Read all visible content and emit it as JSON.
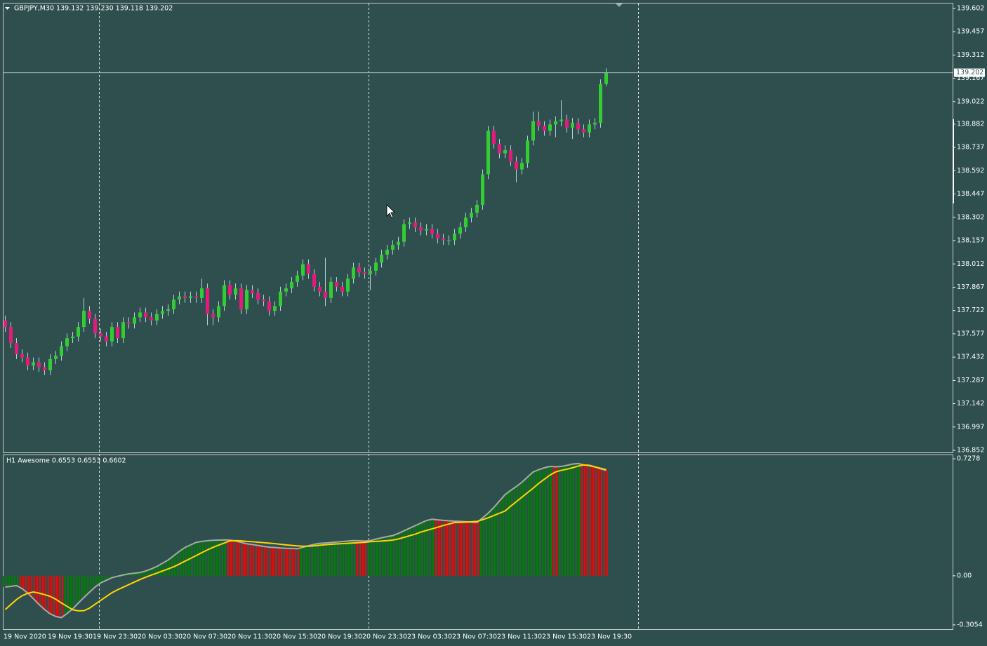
{
  "chart_data": [
    {
      "type": "candlestick",
      "title": "GBPJPY,M30  139.132 139.230 139.118 139.202",
      "categories": [
        "19 Nov 2020",
        null,
        null,
        null,
        null,
        null,
        null,
        "19 Nov 19:30",
        null,
        null,
        null,
        null,
        null,
        null,
        null,
        "19 Nov 23:30",
        null,
        null,
        null,
        null,
        null,
        null,
        null,
        "20 Nov 03:30",
        null,
        null,
        null,
        null,
        null,
        null,
        null,
        "20 Nov 07:30",
        null,
        null,
        null,
        null,
        null,
        null,
        null,
        "20 Nov 11:30",
        null,
        null,
        null,
        null,
        null,
        null,
        null,
        "20 Nov 15:30",
        null,
        null,
        null,
        null,
        null,
        null,
        null,
        "20 Nov 19:30",
        null,
        null,
        null,
        null,
        null,
        null,
        null,
        "20 Nov 23:30",
        null,
        null,
        null,
        null,
        null,
        null,
        null,
        "23 Nov 03:30",
        null,
        null,
        null,
        null,
        null,
        null,
        null,
        "23 Nov 07:30",
        null,
        null,
        null,
        null,
        null,
        null,
        null,
        "23 Nov 11:30",
        null,
        null,
        null,
        null,
        null,
        null,
        null,
        "23 Nov 15:30",
        null,
        null,
        null,
        null,
        null,
        null,
        null,
        "23 Nov 19:30",
        null,
        null,
        null,
        null
      ],
      "open": [
        137.66,
        137.62,
        137.52,
        137.45,
        137.43,
        137.38,
        137.4,
        137.37,
        137.35,
        137.42,
        137.44,
        137.5,
        137.55,
        137.56,
        137.62,
        137.72,
        137.67,
        137.58,
        137.56,
        137.53,
        137.62,
        137.55,
        137.65,
        137.64,
        137.68,
        137.71,
        137.68,
        137.66,
        137.7,
        137.72,
        137.73,
        137.79,
        137.81,
        137.8,
        137.81,
        137.8,
        137.86,
        137.7,
        137.68,
        137.75,
        137.88,
        137.82,
        137.86,
        137.73,
        137.85,
        137.83,
        137.79,
        137.78,
        137.72,
        137.75,
        137.84,
        137.86,
        137.9,
        137.94,
        138.01,
        137.95,
        137.87,
        137.84,
        137.8,
        137.9,
        137.87,
        137.84,
        137.92,
        137.99,
        137.96,
        137.95,
        137.97,
        138.02,
        138.07,
        138.1,
        138.13,
        138.15,
        138.26,
        138.27,
        138.24,
        138.22,
        138.23,
        138.2,
        138.17,
        138.16,
        138.16,
        138.2,
        138.24,
        138.3,
        138.33,
        138.38,
        138.57,
        138.84,
        138.76,
        138.7,
        138.72,
        138.65,
        138.6,
        138.64,
        138.78,
        138.9,
        138.87,
        138.84,
        138.88,
        138.9,
        138.91,
        138.86,
        138.89,
        138.85,
        138.83,
        138.88,
        138.89,
        139.132
      ],
      "high": [
        137.69,
        137.65,
        137.55,
        137.48,
        137.46,
        137.43,
        137.43,
        137.4,
        137.45,
        137.47,
        137.53,
        137.58,
        137.59,
        137.65,
        137.8,
        137.75,
        137.7,
        137.61,
        137.59,
        137.65,
        137.65,
        137.68,
        137.68,
        137.71,
        137.74,
        137.74,
        137.71,
        137.73,
        137.75,
        137.76,
        137.82,
        137.84,
        137.84,
        137.84,
        137.84,
        137.92,
        137.89,
        137.73,
        137.78,
        137.91,
        137.91,
        137.89,
        137.89,
        137.88,
        137.88,
        137.86,
        137.82,
        137.81,
        137.78,
        137.87,
        137.89,
        137.93,
        137.97,
        138.04,
        138.04,
        137.98,
        137.9,
        138.05,
        137.93,
        137.93,
        137.9,
        137.95,
        138.02,
        138.02,
        137.99,
        138.0,
        138.05,
        138.1,
        138.13,
        138.16,
        138.18,
        138.29,
        138.3,
        138.3,
        138.27,
        138.26,
        138.26,
        138.23,
        138.2,
        138.19,
        138.23,
        138.27,
        138.33,
        138.36,
        138.41,
        138.6,
        138.87,
        138.87,
        138.79,
        138.75,
        138.75,
        138.68,
        138.67,
        138.81,
        138.96,
        138.96,
        138.9,
        138.91,
        138.93,
        139.03,
        138.94,
        138.92,
        138.92,
        138.88,
        138.91,
        138.92,
        139.16,
        139.23
      ],
      "low": [
        137.59,
        137.49,
        137.42,
        137.4,
        137.35,
        137.35,
        137.34,
        137.32,
        137.32,
        137.39,
        137.41,
        137.47,
        137.52,
        137.53,
        137.59,
        137.64,
        137.55,
        137.53,
        137.5,
        137.5,
        137.52,
        137.52,
        137.61,
        137.61,
        137.65,
        137.65,
        137.63,
        137.63,
        137.67,
        137.69,
        137.7,
        137.76,
        137.77,
        137.77,
        137.77,
        137.77,
        137.63,
        137.63,
        137.65,
        137.72,
        137.79,
        137.79,
        137.7,
        137.7,
        137.8,
        137.76,
        137.75,
        137.69,
        137.69,
        137.72,
        137.81,
        137.83,
        137.87,
        137.91,
        137.92,
        137.84,
        137.81,
        137.75,
        137.77,
        137.84,
        137.81,
        137.81,
        137.89,
        137.93,
        137.92,
        137.85,
        137.94,
        137.99,
        138.04,
        138.07,
        138.1,
        138.12,
        138.23,
        138.21,
        138.19,
        138.19,
        138.17,
        138.14,
        138.13,
        138.13,
        138.13,
        138.17,
        138.21,
        138.27,
        138.3,
        138.35,
        138.54,
        138.73,
        138.67,
        138.67,
        138.62,
        138.52,
        138.57,
        138.61,
        138.75,
        138.84,
        138.81,
        138.81,
        138.8,
        138.87,
        138.83,
        138.79,
        138.82,
        138.8,
        138.8,
        138.85,
        138.86,
        139.118
      ],
      "close": [
        137.62,
        137.52,
        137.45,
        137.43,
        137.38,
        137.4,
        137.37,
        137.35,
        137.42,
        137.44,
        137.5,
        137.55,
        137.56,
        137.62,
        137.72,
        137.67,
        137.58,
        137.56,
        137.53,
        137.62,
        137.55,
        137.65,
        137.64,
        137.68,
        137.71,
        137.68,
        137.66,
        137.7,
        137.72,
        137.73,
        137.79,
        137.81,
        137.8,
        137.81,
        137.8,
        137.86,
        137.7,
        137.68,
        137.75,
        137.88,
        137.82,
        137.86,
        137.73,
        137.85,
        137.83,
        137.79,
        137.78,
        137.72,
        137.75,
        137.84,
        137.86,
        137.9,
        137.94,
        138.01,
        137.95,
        137.87,
        137.84,
        137.8,
        137.9,
        137.87,
        137.84,
        137.92,
        137.99,
        137.96,
        137.95,
        137.97,
        138.02,
        138.07,
        138.1,
        138.13,
        138.15,
        138.26,
        138.27,
        138.24,
        138.22,
        138.23,
        138.2,
        138.17,
        138.16,
        138.16,
        138.2,
        138.24,
        138.3,
        138.33,
        138.38,
        138.57,
        138.84,
        138.76,
        138.7,
        138.72,
        138.65,
        138.6,
        138.64,
        138.78,
        138.9,
        138.87,
        138.84,
        138.88,
        138.9,
        138.91,
        138.86,
        138.89,
        138.85,
        138.83,
        138.88,
        138.89,
        139.132,
        139.202
      ],
      "up_color": "#32cd32",
      "down_color": "#e8197d",
      "wick_color": "#a8d8d0",
      "current_price": 139.202,
      "ylim": [
        136.839,
        139.637
      ],
      "yticks": [
        139.602,
        139.457,
        139.312,
        139.167,
        139.022,
        138.882,
        138.737,
        138.592,
        138.447,
        138.302,
        138.157,
        138.012,
        137.867,
        137.722,
        137.577,
        137.432,
        137.287,
        137.142,
        136.997,
        136.852
      ]
    },
    {
      "type": "bar",
      "title": "H1 Awesome 0.6553 0.6553 0.6602",
      "values": [
        -0.07,
        -0.066,
        -0.061,
        -0.08,
        -0.107,
        -0.142,
        -0.178,
        -0.21,
        -0.237,
        -0.253,
        -0.26,
        -0.235,
        -0.206,
        -0.17,
        -0.135,
        -0.102,
        -0.07,
        -0.044,
        -0.028,
        -0.012,
        -0.003,
        0.005,
        0.012,
        0.016,
        0.02,
        0.03,
        0.043,
        0.058,
        0.078,
        0.098,
        0.125,
        0.152,
        0.176,
        0.192,
        0.208,
        0.214,
        0.218,
        0.221,
        0.222,
        0.223,
        0.222,
        0.216,
        0.208,
        0.199,
        0.194,
        0.189,
        0.183,
        0.178,
        0.176,
        0.173,
        0.171,
        0.17,
        0.168,
        0.177,
        0.187,
        0.196,
        0.202,
        0.204,
        0.207,
        0.21,
        0.213,
        0.216,
        0.219,
        0.218,
        0.216,
        0.219,
        0.228,
        0.236,
        0.244,
        0.25,
        0.264,
        0.28,
        0.296,
        0.312,
        0.328,
        0.344,
        0.352,
        0.348,
        0.345,
        0.342,
        0.34,
        0.338,
        0.336,
        0.334,
        0.332,
        0.36,
        0.39,
        0.425,
        0.465,
        0.505,
        0.531,
        0.555,
        0.582,
        0.614,
        0.646,
        0.66,
        0.672,
        0.68,
        0.678,
        0.68,
        0.687,
        0.695,
        0.698,
        0.69,
        0.688,
        0.678,
        0.665,
        0.6553
      ],
      "signal": [
        -0.21,
        -0.179,
        -0.148,
        -0.124,
        -0.109,
        -0.101,
        -0.108,
        -0.117,
        -0.128,
        -0.146,
        -0.169,
        -0.19,
        -0.211,
        -0.218,
        -0.217,
        -0.201,
        -0.177,
        -0.153,
        -0.129,
        -0.105,
        -0.087,
        -0.071,
        -0.055,
        -0.039,
        -0.023,
        -0.009,
        0.004,
        0.017,
        0.03,
        0.043,
        0.056,
        0.073,
        0.091,
        0.108,
        0.126,
        0.144,
        0.161,
        0.177,
        0.191,
        0.204,
        0.217,
        0.219,
        0.217,
        0.214,
        0.212,
        0.209,
        0.206,
        0.203,
        0.2,
        0.196,
        0.192,
        0.189,
        0.186,
        0.184,
        0.184,
        0.186,
        0.19,
        0.193,
        0.196,
        0.198,
        0.2,
        0.202,
        0.204,
        0.206,
        0.208,
        0.212,
        0.214,
        0.216,
        0.219,
        0.222,
        0.229,
        0.239,
        0.249,
        0.259,
        0.272,
        0.282,
        0.292,
        0.302,
        0.313,
        0.322,
        0.331,
        0.332,
        0.334,
        0.336,
        0.338,
        0.349,
        0.361,
        0.375,
        0.389,
        0.403,
        0.433,
        0.461,
        0.489,
        0.517,
        0.545,
        0.575,
        0.601,
        0.627,
        0.646,
        0.656,
        0.663,
        0.672,
        0.682,
        0.69,
        0.685,
        0.677,
        0.669,
        0.6602
      ],
      "up_color": "#008000",
      "down_color": "#ff0000",
      "line_color": "#a9a9a9",
      "signal_color": "#ffd700",
      "ylim": [
        -0.332,
        0.75
      ],
      "yticks": [
        0.7278,
        {
          "value": 0,
          "label": "0.00"
        },
        -0.3054
      ]
    }
  ]
}
